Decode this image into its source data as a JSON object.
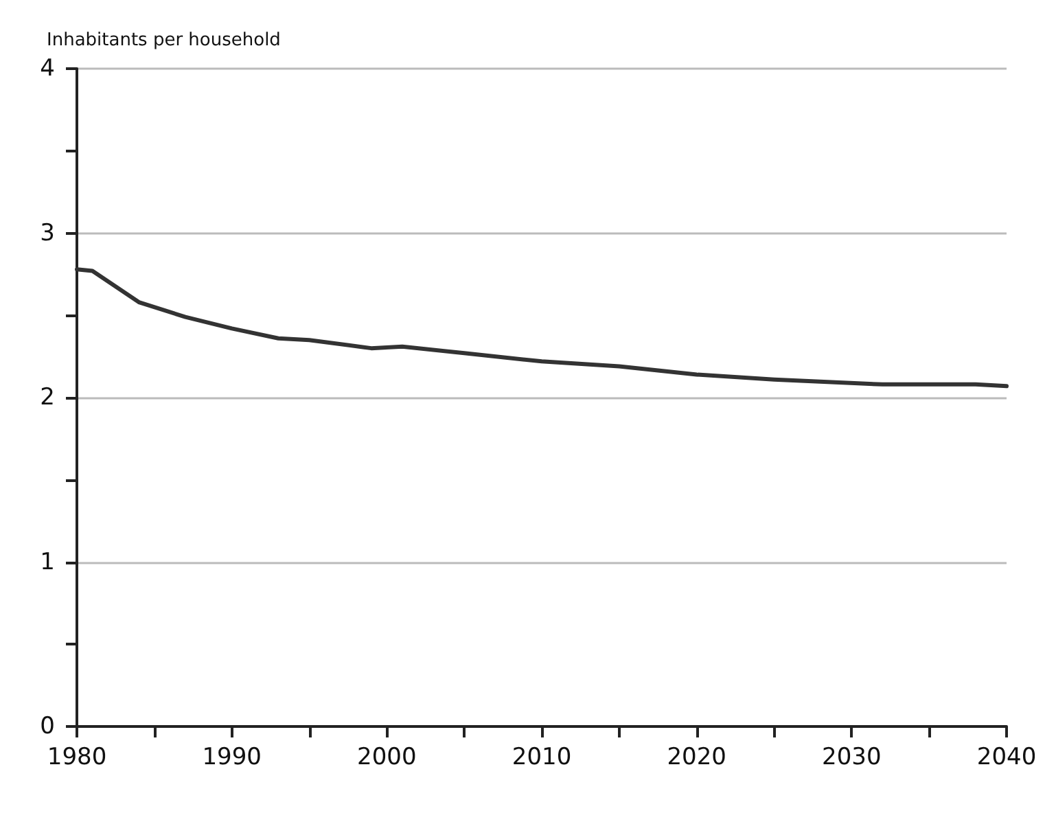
{
  "chart_data": {
    "type": "line",
    "ylabel": "Inhabitants per household",
    "x": [
      1980,
      1981,
      1984,
      1987,
      1990,
      1993,
      1995,
      1999,
      2001,
      2005,
      2010,
      2015,
      2020,
      2025,
      2032,
      2038,
      2040
    ],
    "series": [
      {
        "color": "#333333",
        "values": [
          2.78,
          2.77,
          2.58,
          2.49,
          2.42,
          2.36,
          2.35,
          2.3,
          2.31,
          2.27,
          2.22,
          2.19,
          2.14,
          2.11,
          2.08,
          2.08,
          2.07
        ]
      }
    ],
    "xlim": [
      1980,
      2040
    ],
    "xticks": [
      1980,
      {
        "value": 1985,
        "label": null
      },
      1990,
      {
        "value": 1995,
        "label": null
      },
      2000,
      {
        "value": 2005,
        "label": null
      },
      2010,
      {
        "value": 2015,
        "label": null
      },
      2020,
      {
        "value": 2025,
        "label": null
      },
      2030,
      {
        "value": 2035,
        "label": null
      },
      2040
    ],
    "ylim": [
      0,
      4
    ],
    "yticks": [
      0,
      {
        "value": 0.5,
        "label": null
      },
      1,
      {
        "value": 1.5,
        "label": null
      },
      2,
      {
        "value": 2.5,
        "label": null
      },
      3,
      {
        "value": 3.5,
        "label": null
      },
      4
    ],
    "grid": "y",
    "marker": "none",
    "line_style": "solid"
  }
}
